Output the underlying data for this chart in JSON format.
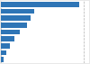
{
  "values": [
    472,
    198,
    178,
    155,
    115,
    80,
    55,
    32,
    18
  ],
  "bar_color": "#2e75b6",
  "background_color": "#e8e8e8",
  "plot_bg_color": "#ffffff",
  "grid_color": "#b0b0b0",
  "grid_linestyle": "--",
  "xlim": [
    0,
    530
  ],
  "bar_height": 0.72,
  "figsize": [
    1.0,
    0.71
  ],
  "dpi": 100
}
